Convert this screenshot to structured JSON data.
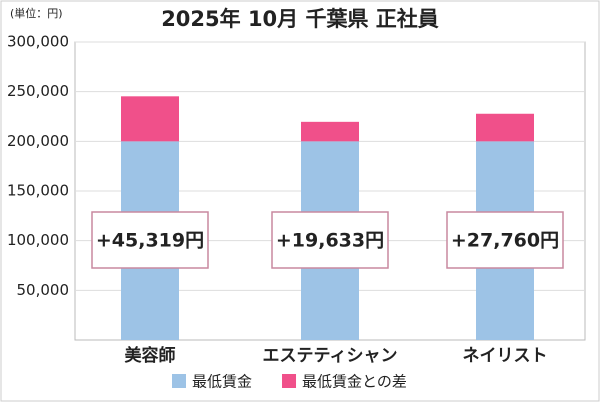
{
  "chart_data": {
    "type": "stacked-bar",
    "unit_label": "(単位：円)",
    "title": "2025年 10月 千葉県 正社員",
    "categories": [
      "美容師",
      "エステティシャン",
      "ネイリスト"
    ],
    "series": [
      {
        "name": "最低賃金",
        "color": "#9dc3e6",
        "values": [
          200000,
          200000,
          200000
        ]
      },
      {
        "name": "最低賃金との差",
        "color": "#f0508a",
        "values": [
          45319,
          19633,
          27760
        ],
        "value_labels": [
          "+45,319円",
          "+19,633円",
          "+27,760円"
        ]
      }
    ],
    "ylim": [
      0,
      300000
    ],
    "yticks": [
      {
        "value": 50000,
        "label": "50,000"
      },
      {
        "value": 100000,
        "label": "100,000"
      },
      {
        "value": 150000,
        "label": "150,000"
      },
      {
        "value": 200000,
        "label": "200,000"
      },
      {
        "value": 250000,
        "label": "250,000"
      },
      {
        "value": 300000,
        "label": "300,000"
      }
    ],
    "grid": true
  }
}
